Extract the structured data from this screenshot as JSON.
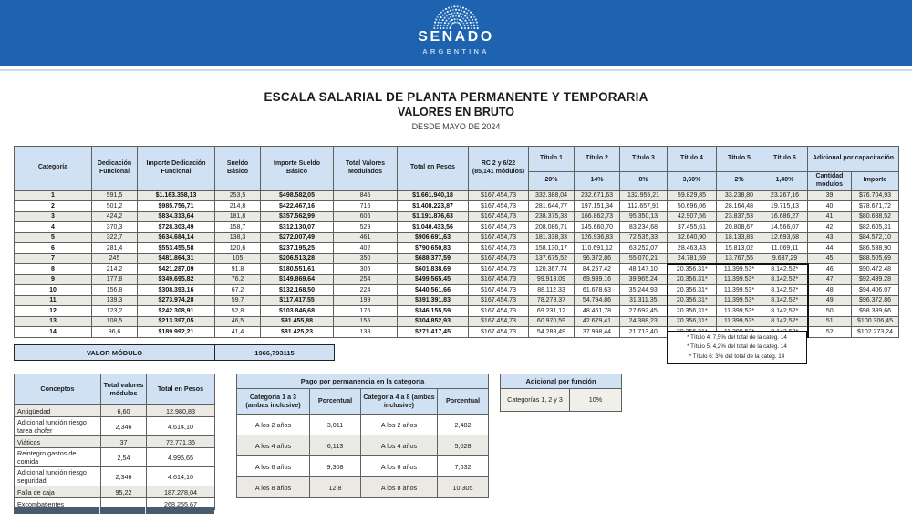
{
  "colors": {
    "banner_blue": "#1e63af",
    "header_blue": "#cfe1f3",
    "stripe": "#ebe9e3"
  },
  "banner": {
    "org": "SENADO",
    "country": "ARGENTINA"
  },
  "title": {
    "line1": "ESCALA SALARIAL DE PLANTA PERMANENTE Y TEMPORARIA",
    "line2": "VALORES EN BRUTO",
    "line3": "DESDE MAYO DE 2024"
  },
  "main_table": {
    "headers_row1": [
      "Categoría",
      "Dedicación Funcional",
      "Importe Dedicación Funcional",
      "Sueldo Básico",
      "Importe Sueldo Básico",
      "Total Valores Modulados",
      "Total en Pesos",
      "RC 2 y 6/22 (85,141 módulos)",
      "Título 1",
      "Título 2",
      "Título 3",
      "Título 4",
      "Título 5",
      "Título 6",
      "Adicional por capacitación"
    ],
    "headers_row2": [
      "20%",
      "14%",
      "8%",
      "3,60%",
      "2%",
      "1,40%",
      "Cantidad módulos",
      "Importe"
    ],
    "rows": [
      [
        "1",
        "591,5",
        "$1.163.358,13",
        "253,5",
        "$498.582,05",
        "845",
        "$1.661.940,18",
        "$167.454,73",
        "332.388,04",
        "232.671,63",
        "132.955,21",
        "59.829,85",
        "33.238,80",
        "23.267,16",
        "39",
        "$76.704,93"
      ],
      [
        "2",
        "501,2",
        "$985.756,71",
        "214,8",
        "$422.467,16",
        "716",
        "$1.408.223,87",
        "$167.454,73",
        "281.644,77",
        "197.151,34",
        "112.657,91",
        "50.696,06",
        "28.164,48",
        "19.715,13",
        "40",
        "$78.671,72"
      ],
      [
        "3",
        "424,2",
        "$834.313,64",
        "181,8",
        "$357.562,99",
        "606",
        "$1.191.876,63",
        "$167.454,73",
        "238.375,33",
        "166.862,73",
        "95.350,13",
        "42.907,56",
        "23.837,53",
        "16.686,27",
        "41",
        "$80.638,52"
      ],
      [
        "4",
        "370,3",
        "$728.303,49",
        "158,7",
        "$312.130,07",
        "529",
        "$1.040.433,56",
        "$167.454,73",
        "208.086,71",
        "145.660,70",
        "83.234,68",
        "37.455,61",
        "20.808,67",
        "14.566,07",
        "42",
        "$82.605,31"
      ],
      [
        "5",
        "322,7",
        "$634.684,14",
        "138,3",
        "$272.007,49",
        "461",
        "$906.691,63",
        "$167.454,73",
        "181.338,33",
        "126.936,83",
        "72.535,33",
        "32.640,90",
        "18.133,83",
        "12.693,68",
        "43",
        "$84.572,10"
      ],
      [
        "6",
        "281,4",
        "$553.455,58",
        "120,6",
        "$237.195,25",
        "402",
        "$790.650,83",
        "$167.454,73",
        "158.130,17",
        "110.691,12",
        "63.252,07",
        "28.463,43",
        "15.813,02",
        "11.069,11",
        "44",
        "$86.538,90"
      ],
      [
        "7",
        "245",
        "$481.864,31",
        "105",
        "$206.513,28",
        "350",
        "$688.377,59",
        "$167.454,73",
        "137.675,52",
        "96.372,86",
        "55.070,21",
        "24.781,59",
        "13.767,55",
        "9.637,29",
        "45",
        "$88.505,69"
      ],
      [
        "8",
        "214,2",
        "$421.287,09",
        "91,8",
        "$180.551,61",
        "306",
        "$601.838,69",
        "$167.454,73",
        "120.367,74",
        "84.257,42",
        "48.147,10",
        "20.356,31*",
        "11.399,53*",
        "8.142,52*",
        "46",
        "$90.472,48"
      ],
      [
        "9",
        "177,8",
        "$349.695,82",
        "76,2",
        "$149.869,64",
        "254",
        "$499.565,45",
        "$167.454,73",
        "99.913,09",
        "69.939,16",
        "39.965,24",
        "20.356,31*",
        "11.399,53*",
        "8.142,52*",
        "47",
        "$92.439,28"
      ],
      [
        "10",
        "156,8",
        "$308.393,16",
        "67,2",
        "$132.168,50",
        "224",
        "$440.561,66",
        "$167.454,73",
        "88.112,33",
        "61.678,63",
        "35.244,93",
        "20.356,31*",
        "11.399,53*",
        "8.142,52*",
        "48",
        "$94.406,07"
      ],
      [
        "11",
        "139,3",
        "$273.974,28",
        "59,7",
        "$117.417,55",
        "199",
        "$391.391,83",
        "$167.454,73",
        "78.278,37",
        "54.794,86",
        "31.311,35",
        "20.356,31*",
        "11.399,53*",
        "8.142,52*",
        "49",
        "$96.372,86"
      ],
      [
        "12",
        "123,2",
        "$242.308,91",
        "52,8",
        "$103.846,68",
        "176",
        "$346.155,59",
        "$167.454,73",
        "69.231,12",
        "48.461,78",
        "27.692,45",
        "20.356,31*",
        "11.399,53*",
        "8.142,52*",
        "50",
        "$98.339,66"
      ],
      [
        "13",
        "108,5",
        "$213.397,05",
        "46,5",
        "$91.455,88",
        "155",
        "$304.852,93",
        "$167.454,73",
        "60.970,59",
        "42.679,41",
        "24.388,23",
        "20.356,31*",
        "11.399,53*",
        "8.142,52*",
        "51",
        "$100.306,45"
      ],
      [
        "14",
        "96,6",
        "$189.992,21",
        "41,4",
        "$81.425,23",
        "138",
        "$271.417,45",
        "$167.454,73",
        "54.283,49",
        "37.998,44",
        "21.713,40",
        "20.356,31*",
        "11.399,53*",
        "8.142,52*",
        "52",
        "$102.273,24"
      ]
    ],
    "valor_modulo": {
      "label": "VALOR MÓDULO",
      "value": "1966,793115"
    },
    "footnotes": [
      "* Título 4:  7,5% del total de la categ. 14",
      "* Título 5:  4,2% del total de la categ. 14",
      "* Título 6:   3% del total de la categ. 14"
    ]
  },
  "conceptos": {
    "headers": [
      "Conceptos",
      "Total valores módulos",
      "Total en Pesos"
    ],
    "rows": [
      [
        "Antigüedad",
        "6,60",
        "12.980,83"
      ],
      [
        "Adicional función riesgo tarea chofer",
        "2,346",
        "4.614,10"
      ],
      [
        "Viáticos",
        "37",
        "72.771,35"
      ],
      [
        "Reintegro gastos de comida",
        "2,54",
        "4.995,65"
      ],
      [
        "Adicional función riesgo seguridad",
        "2,346",
        "4.614,10"
      ],
      [
        "Falla de caja",
        "95,22",
        "187.278,04"
      ],
      [
        "Excombatientes",
        "",
        "268.255,67"
      ]
    ]
  },
  "permanencia": {
    "title": "Pago por permanencia en la categoría",
    "headers": [
      "Categoría 1 a 3 (ambas inclusive)",
      "Porcentual",
      "Categoría 4 a 8 (ambas inclusive)",
      "Porcentual"
    ],
    "rows": [
      [
        "A los 2 años",
        "3,011",
        "A los 2 años",
        "2,482"
      ],
      [
        "A los 4 años",
        "6,113",
        "A los 4 años",
        "5,028"
      ],
      [
        "A los 6 años",
        "9,308",
        "A los 6 años",
        "7,632"
      ],
      [
        "A los 8 años",
        "12,8",
        "A los 8 años",
        "10,305"
      ]
    ]
  },
  "adicional_funcion": {
    "title": "Adicional por función",
    "rows": [
      [
        "Categorías 1, 2 y 3",
        "10%"
      ]
    ]
  }
}
